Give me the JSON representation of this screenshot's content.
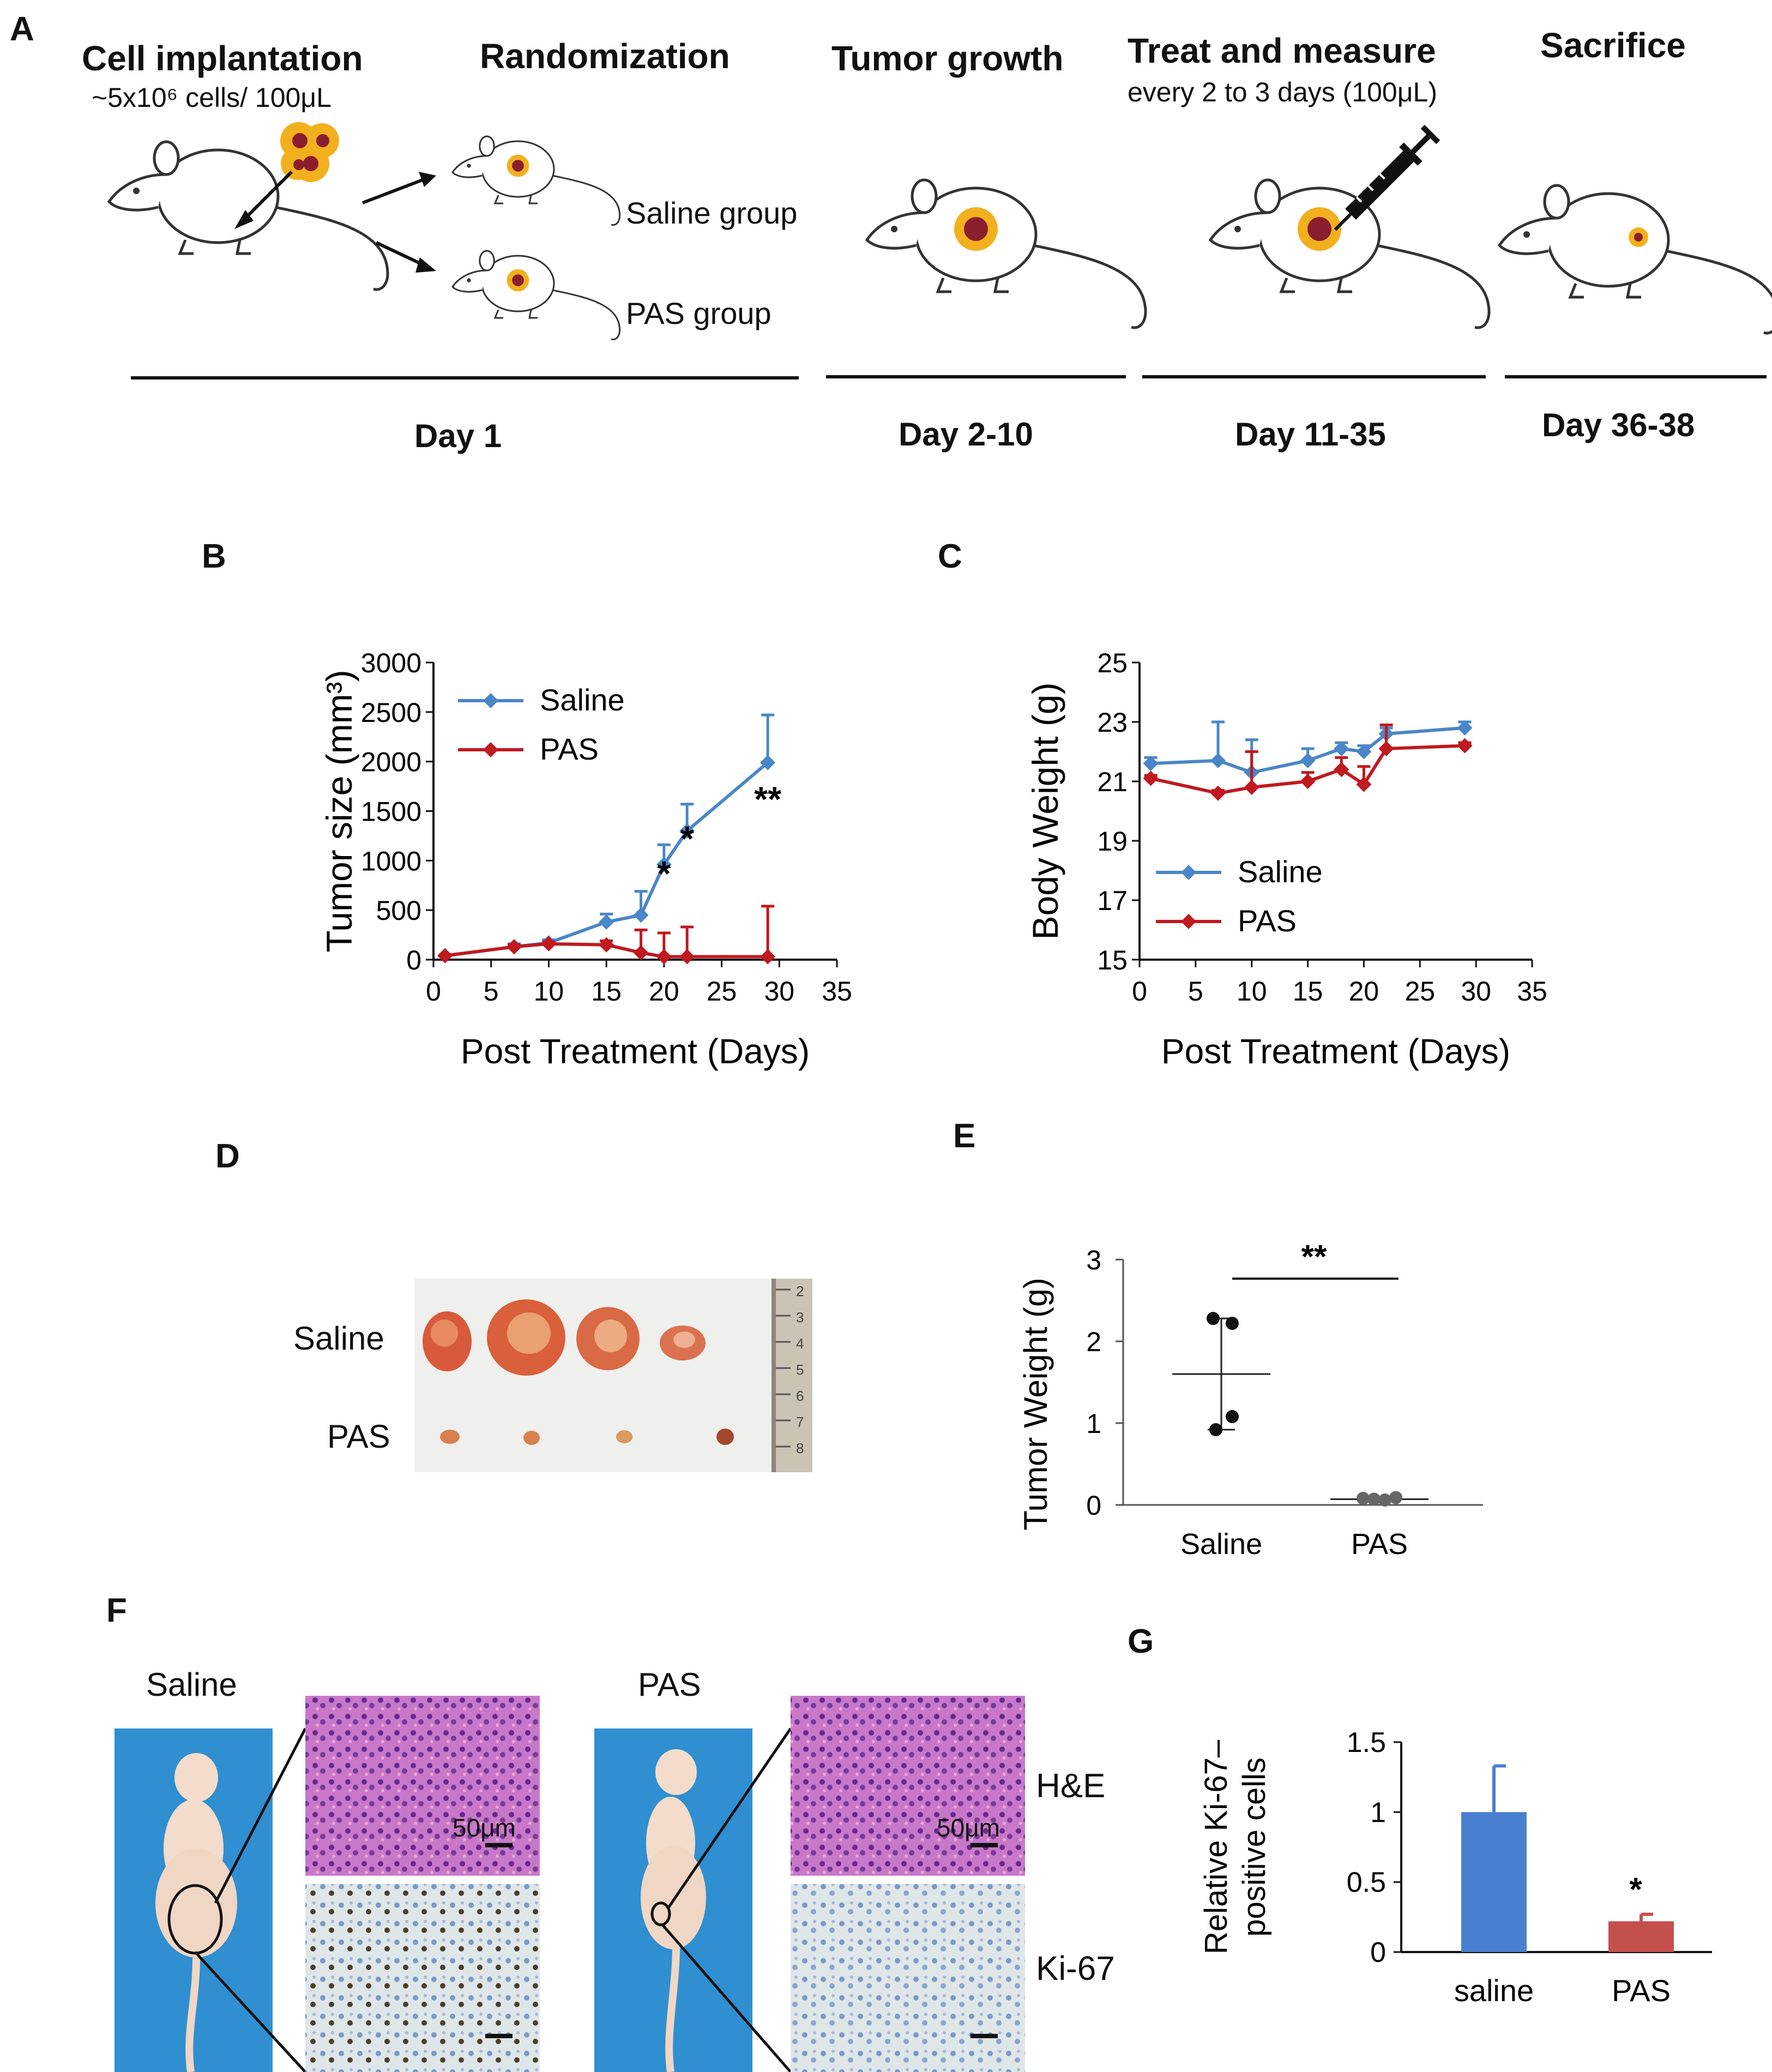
{
  "colors": {
    "saline": "#4a86c8",
    "pas": "#c0191f",
    "mouse_outline": "#333333",
    "tumor_outer": "#f2b01e",
    "tumor_inner": "#8b1e2e",
    "bar_saline": "#4a7fd0",
    "bar_pas": "#c4504c"
  },
  "panel_a": {
    "letter": "A",
    "stages": [
      {
        "title": "Cell implantation",
        "sub": "~5x10⁶ cells/  100μL",
        "day": "Day 1"
      },
      {
        "title": "Randomization",
        "day": ""
      },
      {
        "title": "Tumor growth",
        "day": "Day 2-10"
      },
      {
        "title": "Treat and measure",
        "sub": "every 2 to 3 days (100μL)",
        "day": "Day 11-35"
      },
      {
        "title": "Sacrifice",
        "day": "Day 36-38"
      }
    ],
    "groups": {
      "saline": "Saline group",
      "pas": "PAS group"
    }
  },
  "panel_b": {
    "letter": "B"
  },
  "panel_c": {
    "letter": "C"
  },
  "panel_d": {
    "letter": "D",
    "rows": [
      "Saline",
      "PAS"
    ],
    "ruler_ticks": [
      "2",
      "3",
      "4",
      "5",
      "6",
      "7",
      "8"
    ]
  },
  "panel_e": {
    "letter": "E"
  },
  "panel_f": {
    "letter": "F",
    "left_title": "Saline",
    "right_title": "PAS",
    "scale": "50μm",
    "stains": [
      "H&E",
      "Ki-67"
    ]
  },
  "panel_g": {
    "letter": "G"
  },
  "chart_data": [
    {
      "id": "B",
      "type": "line",
      "xlabel": "Post Treatment (Days)",
      "ylabel": "Tumor size (mm³)",
      "xlim": [
        0,
        35
      ],
      "ylim": [
        0,
        3000
      ],
      "xticks": [
        0,
        5,
        10,
        15,
        20,
        25,
        30,
        35
      ],
      "yticks": [
        0,
        500,
        1000,
        1500,
        2000,
        2500,
        3000
      ],
      "series": [
        {
          "name": "Saline",
          "x": [
            1,
            7,
            10,
            15,
            18,
            20,
            22,
            29
          ],
          "y": [
            40,
            130,
            170,
            380,
            450,
            960,
            1300,
            1990
          ],
          "err": [
            0,
            30,
            30,
            80,
            240,
            200,
            270,
            480
          ]
        },
        {
          "name": "PAS",
          "x": [
            1,
            7,
            10,
            15,
            18,
            20,
            22,
            29
          ],
          "y": [
            40,
            130,
            160,
            150,
            70,
            30,
            30,
            30
          ],
          "err": [
            0,
            20,
            20,
            40,
            230,
            240,
            300,
            510
          ]
        }
      ],
      "annotations": [
        {
          "x": 20,
          "y": 750,
          "text": "*"
        },
        {
          "x": 22,
          "y": 1100,
          "text": "*"
        },
        {
          "x": 29,
          "y": 1500,
          "text": "**"
        }
      ],
      "legend": "top-left"
    },
    {
      "id": "C",
      "type": "line",
      "xlabel": "Post Treatment (Days)",
      "ylabel": "Body Weight (g)",
      "xlim": [
        0,
        35
      ],
      "ylim": [
        15,
        25
      ],
      "xticks": [
        0,
        5,
        10,
        15,
        20,
        25,
        30,
        35
      ],
      "yticks": [
        15,
        17,
        19,
        21,
        23,
        25
      ],
      "series": [
        {
          "name": "Saline",
          "x": [
            1,
            7,
            10,
            15,
            18,
            20,
            22,
            29
          ],
          "y": [
            21.6,
            21.7,
            21.3,
            21.7,
            22.1,
            22.0,
            22.6,
            22.8
          ],
          "err": [
            0.2,
            1.3,
            1.1,
            0.4,
            0.2,
            0.2,
            0.2,
            0.2
          ]
        },
        {
          "name": "PAS",
          "x": [
            1,
            7,
            10,
            15,
            18,
            20,
            22,
            29
          ],
          "y": [
            21.1,
            20.6,
            20.8,
            21.0,
            21.4,
            20.9,
            22.1,
            22.2
          ],
          "err": [
            0.1,
            0.1,
            1.2,
            0.3,
            0.4,
            0.6,
            0.8,
            0.1
          ]
        }
      ],
      "legend": "bottom-left"
    },
    {
      "id": "E",
      "type": "scatter",
      "ylabel": "Tumor Weight (g)",
      "ylim": [
        0,
        3
      ],
      "yticks": [
        0,
        1,
        2,
        3
      ],
      "categories": [
        "Saline",
        "PAS"
      ],
      "points": [
        [
          2.28,
          2.22,
          1.08,
          0.92
        ],
        [
          0.08,
          0.07,
          0.06,
          0.09
        ]
      ],
      "mean": [
        1.6,
        0.07
      ],
      "sd": [
        0.68,
        0.02
      ],
      "annotations": [
        {
          "text": "**"
        }
      ]
    },
    {
      "id": "G",
      "type": "bar",
      "ylabel": "Relative Ki-67–\npositive cells",
      "ylim": [
        0,
        1.5
      ],
      "yticks": [
        0,
        0.5,
        1,
        1.5
      ],
      "categories": [
        "saline",
        "PAS"
      ],
      "values": [
        1.0,
        0.22
      ],
      "err": [
        0.33,
        0.05
      ],
      "annotations": [
        {
          "x": "PAS",
          "text": "*"
        }
      ]
    }
  ]
}
